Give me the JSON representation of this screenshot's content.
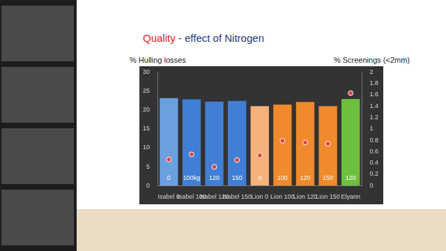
{
  "chart_data": {
    "type": "bar",
    "title": "Quality - effect of Nitrogen",
    "categories": [
      "Isabel 0",
      "Isabel 100",
      "Isabel 120",
      "Isabel 150",
      "Lion 0",
      "Lion 100",
      "Lion 120",
      "Lion 150",
      "Elyann"
    ],
    "annotations": [
      "0",
      "100kg",
      "120",
      "150",
      "0",
      "100",
      "120",
      "150",
      "120"
    ],
    "series": [
      {
        "name": "% Hulling losses",
        "type": "bar",
        "colors": [
          "#6b9fe0",
          "#3f7fd6",
          "#3f7fd6",
          "#3f7fd6",
          "#f5b27a",
          "#f08a2c",
          "#f08a2c",
          "#f08a2c",
          "#6fbf3f"
        ],
        "values": [
          23.1,
          22.8,
          22.2,
          22.4,
          21.0,
          21.4,
          22.1,
          21.0,
          22.9
        ]
      },
      {
        "name": "% Screenings (<2mm)",
        "type": "scatter",
        "color": "#e8423c",
        "axis": "y2",
        "values": [
          0.46,
          0.55,
          0.33,
          0.45,
          0.53,
          0.79,
          0.76,
          0.74,
          1.63
        ]
      }
    ],
    "ylim": [
      0,
      30
    ],
    "yticks": [
      0,
      5,
      10,
      15,
      20,
      25,
      30
    ],
    "y2lim": [
      0,
      2
    ],
    "y2ticks": [
      0,
      0.2,
      0.4,
      0.6,
      0.8,
      1,
      1.2,
      1.4,
      1.6,
      1.8,
      2
    ],
    "grid": false
  }
}
